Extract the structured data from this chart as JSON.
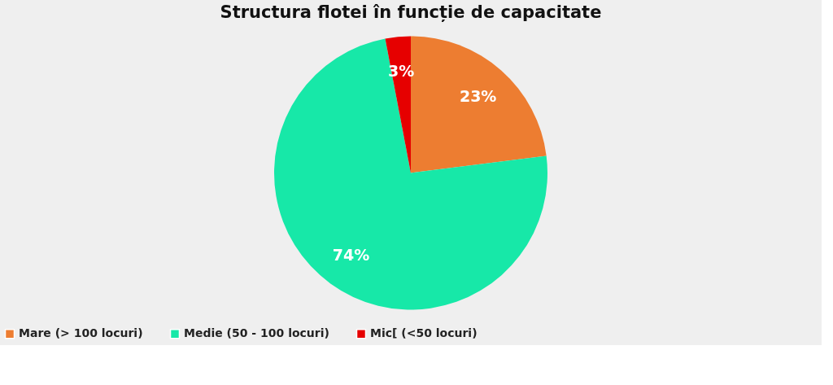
{
  "chart_data": {
    "type": "pie",
    "title": "Structura flotei în funcție de capacitate",
    "categories": [
      "Mare (> 100 locuri)",
      "Medie (50 - 100 locuri)",
      "Mic[ (<50 locuri)"
    ],
    "values": [
      23,
      74,
      3
    ],
    "colors": [
      "#ed7d31",
      "#17e8a8",
      "#e60000"
    ],
    "value_labels": [
      "23%",
      "74%",
      "3%"
    ],
    "legend": "bottom"
  }
}
